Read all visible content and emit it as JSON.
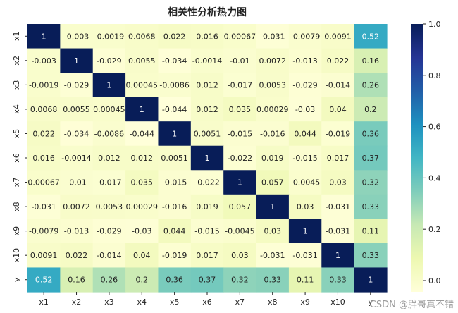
{
  "chart_data": {
    "type": "heatmap",
    "title": "相关性分析热力图",
    "labels": [
      "x1",
      "x2",
      "x3",
      "x4",
      "x5",
      "x6",
      "x7",
      "x8",
      "x9",
      "x10",
      "y"
    ],
    "values": [
      [
        1,
        -0.003,
        -0.0019,
        0.0068,
        0.022,
        0.016,
        0.00067,
        -0.031,
        -0.0079,
        0.0091,
        0.52
      ],
      [
        -0.003,
        1,
        -0.029,
        0.0055,
        -0.034,
        -0.0014,
        -0.01,
        0.0072,
        -0.013,
        0.022,
        0.16
      ],
      [
        -0.0019,
        -0.029,
        1,
        0.00045,
        -0.0086,
        0.012,
        -0.017,
        0.0053,
        -0.029,
        -0.014,
        0.26
      ],
      [
        0.0068,
        0.0055,
        0.00045,
        1,
        -0.044,
        0.012,
        0.035,
        0.00029,
        -0.03,
        0.04,
        0.2
      ],
      [
        0.022,
        -0.034,
        -0.0086,
        -0.044,
        1,
        0.0051,
        -0.015,
        -0.016,
        0.044,
        -0.019,
        0.36
      ],
      [
        0.016,
        -0.0014,
        0.012,
        0.012,
        0.0051,
        1,
        -0.022,
        0.019,
        -0.015,
        0.017,
        0.37
      ],
      [
        0.00067,
        -0.01,
        -0.017,
        0.035,
        -0.015,
        -0.022,
        1,
        0.057,
        -0.0045,
        0.03,
        0.32
      ],
      [
        -0.031,
        0.0072,
        0.0053,
        0.00029,
        -0.016,
        0.019,
        0.057,
        1,
        0.03,
        -0.031,
        0.33
      ],
      [
        -0.0079,
        -0.013,
        -0.029,
        -0.03,
        0.044,
        -0.015,
        -0.0045,
        0.03,
        1,
        -0.031,
        0.11
      ],
      [
        0.0091,
        0.022,
        -0.014,
        0.04,
        -0.019,
        0.017,
        0.03,
        -0.031,
        -0.031,
        1,
        0.33
      ],
      [
        0.52,
        0.16,
        0.26,
        0.2,
        0.36,
        0.37,
        0.32,
        0.33,
        0.11,
        0.33,
        1
      ]
    ],
    "colorbar": {
      "range": [
        -0.044,
        1
      ],
      "ticks": [
        "0.0",
        "0.2",
        "0.4",
        "0.6",
        "0.8",
        "1.0"
      ],
      "colormap": "YlGnBu"
    },
    "grid": false,
    "legend": "right"
  },
  "watermark": "CSDN @胖哥真不错",
  "colors": {
    "background": "#ffffff",
    "text": "#222222",
    "annotation_light": "#222222",
    "annotation_dark": "#ffffff"
  }
}
